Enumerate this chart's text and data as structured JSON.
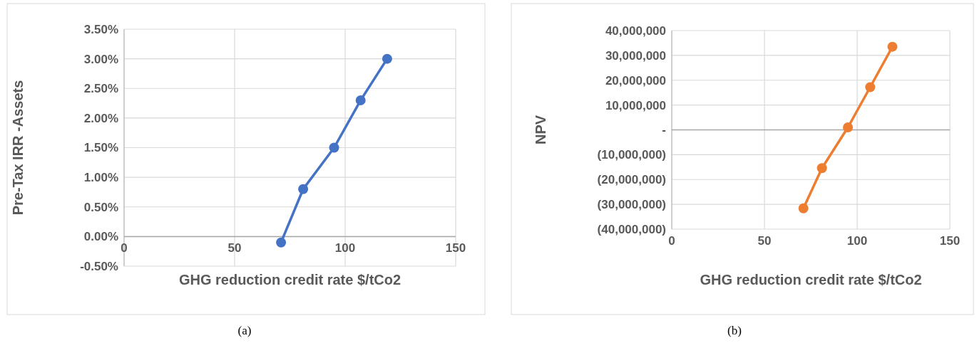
{
  "chart_data": [
    {
      "type": "line",
      "xlabel": "GHG reduction credit rate $/tCo2",
      "ylabel": "Pre-Tax IRR -Assets",
      "annotations": [
        "(a)"
      ],
      "series": [
        {
          "color": "#4472c4",
          "x": [
            71,
            81,
            95,
            107,
            119
          ],
          "values": [
            -0.1,
            0.8,
            1.5,
            2.3,
            3.0
          ]
        }
      ],
      "xlim": [
        0,
        150
      ],
      "xticks": [
        0,
        50,
        100,
        150
      ],
      "ylim": [
        -0.5,
        3.5
      ],
      "yticks": [
        {
          "value": -0.5,
          "label": "-0.50%"
        },
        {
          "value": 0,
          "label": "0.00%"
        },
        {
          "value": 0.5,
          "label": "0.50%"
        },
        {
          "value": 1,
          "label": "1.00%"
        },
        {
          "value": 1.5,
          "label": "1.50%"
        },
        {
          "value": 2,
          "label": "2.00%"
        },
        {
          "value": 2.5,
          "label": "2.50%"
        },
        {
          "value": 3,
          "label": "3.00%"
        },
        {
          "value": 3.5,
          "label": "3.50%"
        }
      ],
      "grid": true,
      "marker": "circle",
      "line_style": "solid"
    },
    {
      "type": "line",
      "xlabel": "GHG reduction credit rate $/tCo2",
      "ylabel": "NPV",
      "annotations": [
        "(b)"
      ],
      "series": [
        {
          "color": "#ed7d31",
          "x": [
            71,
            81,
            95,
            107,
            119
          ],
          "values": [
            -31600000,
            -15400000,
            1000000,
            17200000,
            33500000
          ]
        }
      ],
      "xlim": [
        0,
        150
      ],
      "xticks": [
        0,
        50,
        100,
        150
      ],
      "ylim": [
        -40000000,
        40000000
      ],
      "yticks": [
        {
          "value": -40000000,
          "label": "(40,000,000)"
        },
        {
          "value": -30000000,
          "label": "(30,000,000)"
        },
        {
          "value": -20000000,
          "label": "(20,000,000)"
        },
        {
          "value": -10000000,
          "label": "(10,000,000)"
        },
        {
          "value": 0,
          "label": "-"
        },
        {
          "value": 10000000,
          "label": "10,000,000"
        },
        {
          "value": 20000000,
          "label": "20,000,000"
        },
        {
          "value": 30000000,
          "label": "30,000,000"
        },
        {
          "value": 40000000,
          "label": "40,000,000"
        }
      ],
      "grid": true,
      "marker": "circle",
      "line_style": "solid"
    }
  ]
}
